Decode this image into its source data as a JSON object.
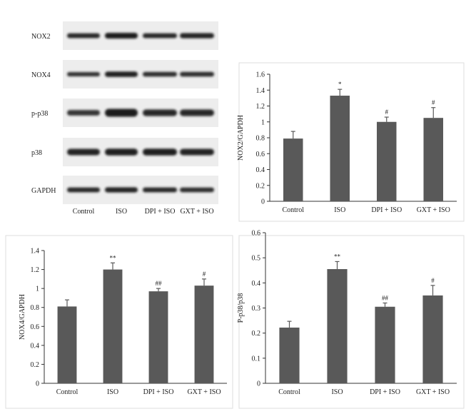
{
  "blot": {
    "row_labels": [
      "NOX2",
      "NOX4",
      "p-p38",
      "p38",
      "GAPDH"
    ],
    "lane_labels": [
      "Control",
      "ISO",
      "DPI + ISO",
      "GXT + ISO"
    ]
  },
  "chart_data": [
    {
      "type": "bar",
      "categories": [
        "Control",
        "ISO",
        "DPI + ISO",
        "GXT + ISO"
      ],
      "values": [
        0.79,
        1.33,
        1.0,
        1.05
      ],
      "errors": [
        0.09,
        0.08,
        0.06,
        0.13
      ],
      "annotations": [
        "",
        "*",
        "#",
        "#"
      ],
      "ylabel": "NOX2/GAPDH",
      "ylim": [
        0,
        1.6
      ],
      "yticks": [
        "0",
        "0.2",
        "0.4",
        "0.6",
        "0.8",
        "1",
        "1.2",
        "1.4",
        "1.6"
      ]
    },
    {
      "type": "bar",
      "categories": [
        "Control",
        "ISO",
        "DPI + ISO",
        "GXT + ISO"
      ],
      "values": [
        0.81,
        1.2,
        0.97,
        1.03
      ],
      "errors": [
        0.07,
        0.07,
        0.03,
        0.07
      ],
      "annotations": [
        "",
        "**",
        "##",
        "#"
      ],
      "ylabel": "NOX4/GAPDH",
      "ylim": [
        0,
        1.4
      ],
      "yticks": [
        "0",
        "0.2",
        "0.4",
        "0.6",
        "0.8",
        "1",
        "1.2",
        "1.4"
      ]
    },
    {
      "type": "bar",
      "categories": [
        "Control",
        "ISO",
        "DPI + ISO",
        "GXT + ISO"
      ],
      "values": [
        0.222,
        0.455,
        0.305,
        0.35
      ],
      "errors": [
        0.025,
        0.03,
        0.015,
        0.04
      ],
      "annotations": [
        "",
        "**",
        "##",
        "#"
      ],
      "ylabel": "P-p38/p38",
      "ylim": [
        0,
        0.6
      ],
      "yticks": [
        "0",
        "0.1",
        "0.2",
        "0.3",
        "0.4",
        "0.5",
        "0.6"
      ]
    }
  ],
  "colors": {
    "bar": "#595959",
    "axis": "#333333",
    "frame": "#dddddd",
    "blot_bg": "#ededed",
    "band": "#1a1a1a"
  }
}
